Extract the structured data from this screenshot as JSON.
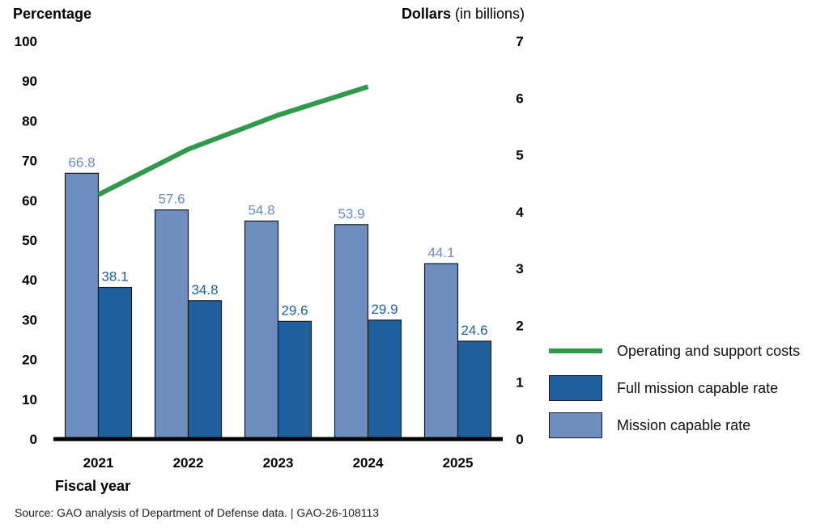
{
  "chart_data": {
    "type": "bar",
    "categories": [
      "2021",
      "2022",
      "2023",
      "2024",
      "2025"
    ],
    "series": [
      {
        "name": "Mission capable rate",
        "values": [
          66.8,
          57.6,
          54.8,
          53.9,
          44.1
        ],
        "color": "#6d8ebf",
        "axis": "left",
        "label_color": "#6a8cbd"
      },
      {
        "name": "Full mission capable rate",
        "values": [
          38.1,
          34.8,
          29.6,
          29.9,
          24.6
        ],
        "color": "#1f5f9e",
        "axis": "left",
        "label_color": "#1f5f9e"
      },
      {
        "name": "Operating and support costs",
        "type": "line",
        "values": [
          4.3,
          5.1,
          5.7,
          6.2,
          null
        ],
        "color": "#2e9a4a",
        "axis": "right"
      }
    ],
    "left_axis": {
      "label": "Percentage",
      "ylim": [
        0,
        100
      ],
      "ticks": [
        "0",
        "10",
        "20",
        "30",
        "40",
        "50",
        "60",
        "70",
        "80",
        "90",
        "100"
      ]
    },
    "right_axis": {
      "label_bold": "Dollars",
      "label_rest": " (in billions)",
      "ylim": [
        0,
        7
      ],
      "ticks": [
        "0",
        "1",
        "2",
        "3",
        "4",
        "5",
        "6",
        "7"
      ]
    },
    "xlabel": "Fiscal year",
    "grid": false,
    "legend": {
      "placement": "right",
      "items": [
        {
          "label": "Operating and support costs",
          "swatch": "line",
          "color": "#2e9a4a"
        },
        {
          "label": "Full mission capable rate",
          "swatch": "box",
          "color": "#1f5f9e"
        },
        {
          "label": "Mission capable rate",
          "swatch": "box",
          "color": "#6d8ebf"
        }
      ]
    }
  },
  "source": "Source: GAO analysis of Department of Defense data.  |  GAO-26-108113"
}
